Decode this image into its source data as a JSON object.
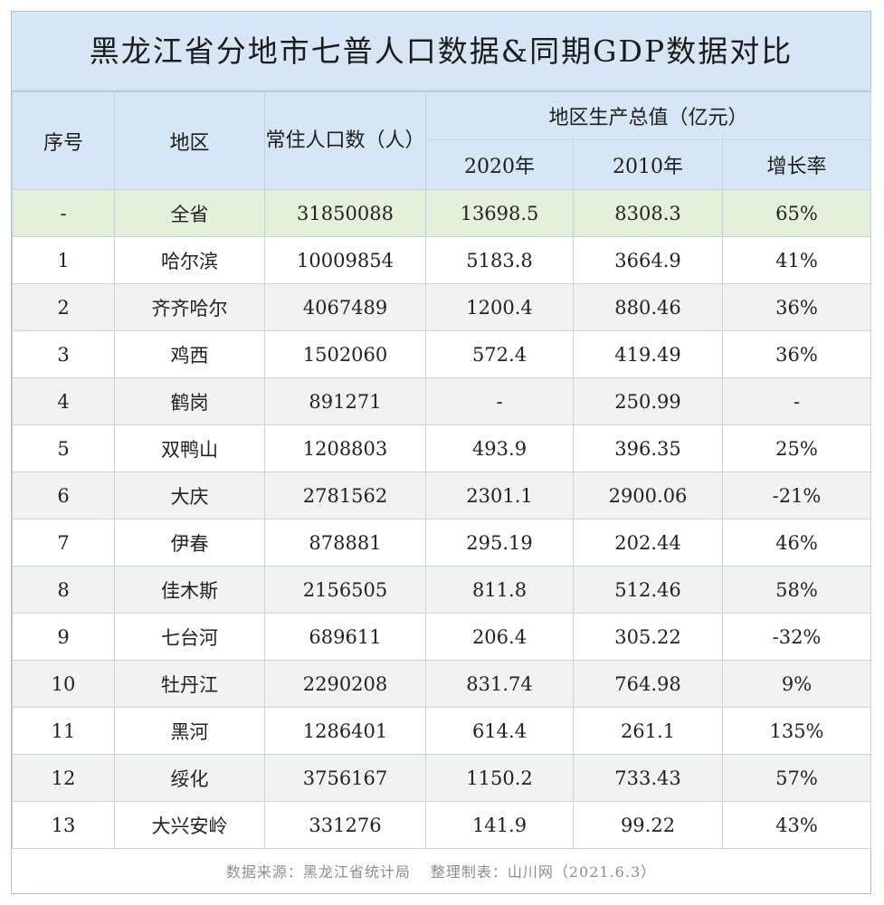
{
  "title": "黑龙江省分地市七普人口数据&同期GDP数据对比",
  "header": {
    "index": "序号",
    "region": "地区",
    "population": "常住人口数（人）",
    "gdp_group": "地区生产总值（亿元）",
    "gdp_2020": "2020年",
    "gdp_2010": "2010年",
    "growth": "增长率"
  },
  "rows": [
    {
      "no": "-",
      "region": "全省",
      "pop": "31850088",
      "gdp2020": "13698.5",
      "gdp2010": "8308.3",
      "growth": "65%"
    },
    {
      "no": "1",
      "region": "哈尔滨",
      "pop": "10009854",
      "gdp2020": "5183.8",
      "gdp2010": "3664.9",
      "growth": "41%"
    },
    {
      "no": "2",
      "region": "齐齐哈尔",
      "pop": "4067489",
      "gdp2020": "1200.4",
      "gdp2010": "880.46",
      "growth": "36%"
    },
    {
      "no": "3",
      "region": "鸡西",
      "pop": "1502060",
      "gdp2020": "572.4",
      "gdp2010": "419.49",
      "growth": "36%"
    },
    {
      "no": "4",
      "region": "鹤岗",
      "pop": "891271",
      "gdp2020": "-",
      "gdp2010": "250.99",
      "growth": "-"
    },
    {
      "no": "5",
      "region": "双鸭山",
      "pop": "1208803",
      "gdp2020": "493.9",
      "gdp2010": "396.35",
      "growth": "25%"
    },
    {
      "no": "6",
      "region": "大庆",
      "pop": "2781562",
      "gdp2020": "2301.1",
      "gdp2010": "2900.06",
      "growth": "-21%"
    },
    {
      "no": "7",
      "region": "伊春",
      "pop": "878881",
      "gdp2020": "295.19",
      "gdp2010": "202.44",
      "growth": "46%"
    },
    {
      "no": "8",
      "region": "佳木斯",
      "pop": "2156505",
      "gdp2020": "811.8",
      "gdp2010": "512.46",
      "growth": "58%"
    },
    {
      "no": "9",
      "region": "七台河",
      "pop": "689611",
      "gdp2020": "206.4",
      "gdp2010": "305.22",
      "growth": "-32%"
    },
    {
      "no": "10",
      "region": "牡丹江",
      "pop": "2290208",
      "gdp2020": "831.74",
      "gdp2010": "764.98",
      "growth": "9%"
    },
    {
      "no": "11",
      "region": "黑河",
      "pop": "1286401",
      "gdp2020": "614.4",
      "gdp2010": "261.1",
      "growth": "135%"
    },
    {
      "no": "12",
      "region": "绥化",
      "pop": "3756167",
      "gdp2020": "1150.2",
      "gdp2010": "733.43",
      "growth": "57%"
    },
    {
      "no": "13",
      "region": "大兴安岭",
      "pop": "331276",
      "gdp2020": "141.9",
      "gdp2010": "99.22",
      "growth": "43%"
    }
  ],
  "footer": {
    "source": "数据来源：黑龙江省统计局",
    "made_by": "整理制表：山川网（2021.6.3）"
  },
  "colors": {
    "header_bg": "#d6e6f5",
    "total_row_bg": "#e3f0da",
    "alt_row_bg": "#f2f2f2",
    "border": "#c3d3e2"
  }
}
